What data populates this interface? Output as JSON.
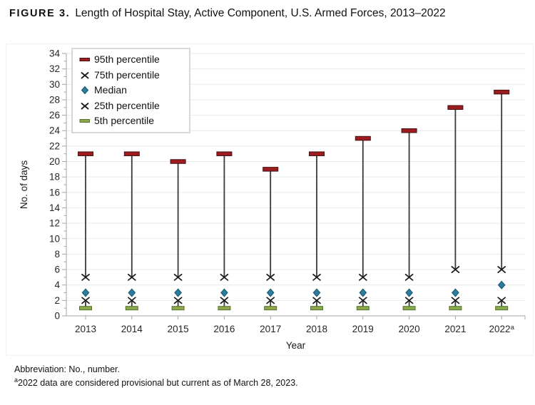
{
  "page": {
    "figure_label": "FIGURE 3.",
    "title": "Length of Hospital Stay, Active Component, U.S. Armed Forces, 2013–2022",
    "footnotes": {
      "line1": "Abbreviation: No., number.",
      "line2_sup": "a",
      "line2": "2022 data are considered provisional but current as of March 28, 2023."
    }
  },
  "chart_data": {
    "type": "scatter",
    "subtype": "percentile-high-low-chart",
    "title": "Length of Hospital Stay, Active Component, U.S. Armed Forces, 2013–2022",
    "xlabel": "Year",
    "ylabel": "No. of days",
    "ylim": [
      0,
      34
    ],
    "ytick_step": 2,
    "grid": "horizontal gridlines every 2 units",
    "legend_position": "top-left inside plot area",
    "categories": [
      "2013",
      "2014",
      "2015",
      "2016",
      "2017",
      "2018",
      "2019",
      "2020",
      "2021",
      "2022"
    ],
    "category_superscript": {
      "index": 9,
      "text": "a"
    },
    "series": [
      {
        "name": "95th percentile",
        "marker": "dash",
        "color": "#9E1B1F",
        "border_color": "#441012",
        "values": [
          21,
          21,
          20,
          21,
          19,
          21,
          23,
          24,
          27,
          29
        ]
      },
      {
        "name": "75th percentile",
        "marker": "x",
        "color": "#1A1A1A",
        "border_color": "#1A1A1A",
        "values": [
          5,
          5,
          5,
          5,
          5,
          5,
          5,
          5,
          6,
          6
        ]
      },
      {
        "name": "Median",
        "marker": "diamond",
        "color": "#2E7C9C",
        "border_color": "#14536E",
        "values": [
          3,
          3,
          3,
          3,
          3,
          3,
          3,
          3,
          3,
          4
        ]
      },
      {
        "name": "25th percentile",
        "marker": "x",
        "color": "#1A1A1A",
        "border_color": "#1A1A1A",
        "values": [
          2,
          2,
          2,
          2,
          2,
          2,
          2,
          2,
          2,
          2
        ]
      },
      {
        "name": "5th percentile",
        "marker": "dash",
        "color": "#8AA84B",
        "border_color": "#55702C",
        "values": [
          1,
          1,
          1,
          1,
          1,
          1,
          1,
          1,
          1,
          1
        ]
      }
    ],
    "whiskers": [
      {
        "from_series": "75th percentile",
        "to_series": "95th percentile",
        "color": "#3A3A3A"
      },
      {
        "from_series": "5th percentile",
        "to_series": "25th percentile",
        "color": "#3A3A3A"
      }
    ],
    "axis_color": "#A6A6A6",
    "grid_color": "#E9E9E9",
    "tick_label_color": "#262626",
    "chart_border_color": "#F1F1F1"
  }
}
